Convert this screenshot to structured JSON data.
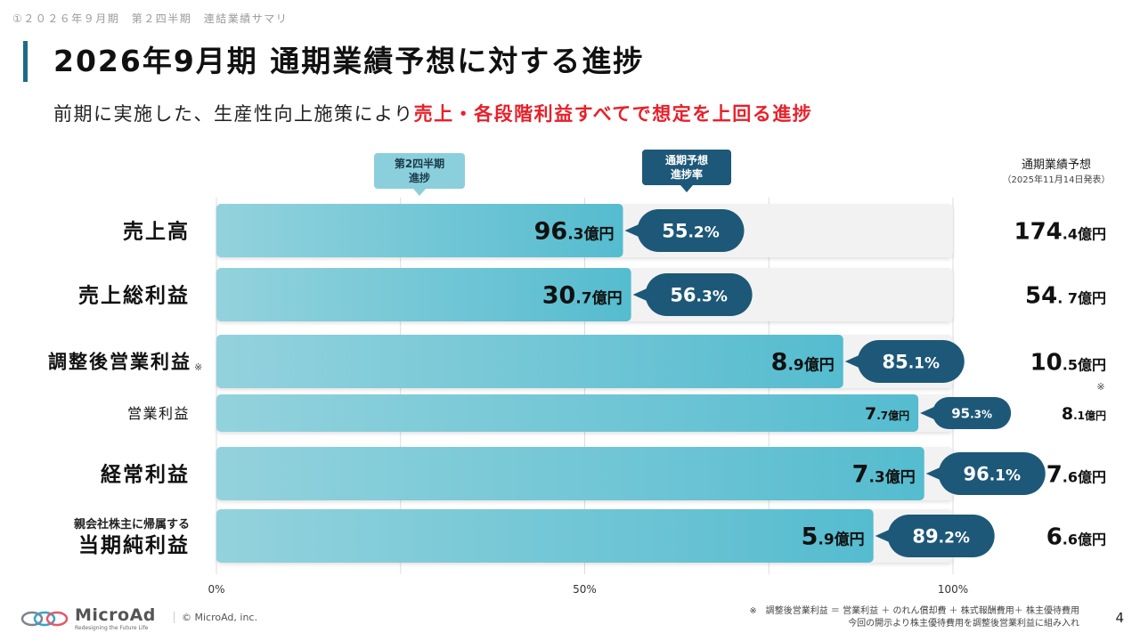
{
  "breadcrumb": "①２０２６年９月期　第２四半期　連結業績サマリ",
  "title": "2026年9月期 通期業績予想に対する進捗",
  "subtitle": {
    "normal": "前期に実施した、生産性向上施策により",
    "highlight": "売上・各段階利益すべてで想定を上回る進捗"
  },
  "callouts": {
    "q2_line1": "第2四半期",
    "q2_line2": "進捗",
    "rate_line1": "通期予想",
    "rate_line2": "進捗率"
  },
  "forecast_header": {
    "line1": "通期業績予想",
    "line2": "（2025年11月14日発表）"
  },
  "footnote": {
    "line1": "※　調整後営業利益 ＝ 営業利益 ＋ のれん償却費 ＋ 株式報酬費用＋ 株主優待費用",
    "line2": "今回の開示より株主優待費用を調整後営業利益に組み入れ"
  },
  "company": {
    "name": "MicroAd",
    "tagline": "Redesigning the Future Life",
    "copyright": "© MicroAd, inc."
  },
  "page_number": "4",
  "colors": {
    "accent": "#1f6a86",
    "bar_start": "#8fd0dc",
    "bar_end": "#5bbfd0",
    "bubble": "#1d5878",
    "highlight": "#e8202a",
    "track": "#f2f2f2"
  },
  "chart_data": {
    "type": "bar",
    "orientation": "horizontal",
    "xlim": [
      0,
      100
    ],
    "x_ticks": [
      "0%",
      "50%",
      "100%"
    ],
    "categories": [
      "売上高",
      "売上総利益",
      "調整後営業利益",
      "営業利益",
      "経常利益",
      "当期純利益"
    ],
    "category_notes": [
      "",
      "",
      "※",
      "",
      "",
      ""
    ],
    "category_prefix": [
      "",
      "",
      "",
      "",
      "",
      "親会社株主に帰属する"
    ],
    "progress_rate": [
      55.2,
      56.3,
      85.1,
      95.3,
      96.1,
      89.2
    ],
    "progress_rate_labels": [
      "55.2%",
      "56.3%",
      "85.1%",
      "95.3%",
      "96.1%",
      "89.2%"
    ],
    "q2_values": [
      96.3,
      30.7,
      8.9,
      7.7,
      7.3,
      5.9
    ],
    "q2_labels": [
      {
        "int": "96",
        "dec": ".3億円"
      },
      {
        "int": "30",
        "dec": ".7億円"
      },
      {
        "int": "8",
        "dec": ".9億円"
      },
      {
        "int": "7",
        "dec": ".7億円"
      },
      {
        "int": "7",
        "dec": ".3億円"
      },
      {
        "int": "5",
        "dec": ".9億円"
      }
    ],
    "forecast_values": [
      174.4,
      54.7,
      10.5,
      8.1,
      7.6,
      6.6
    ],
    "forecast_labels": [
      {
        "int": "174",
        "dec": ".4億円"
      },
      {
        "int": "54",
        "dec": ". 7億円"
      },
      {
        "int": "10",
        "dec": ".5億円"
      },
      {
        "int": "8",
        "dec": ".1億円"
      },
      {
        "int": "7",
        "dec": ".6億円"
      },
      {
        "int": "6",
        "dec": ".6億円"
      }
    ],
    "forecast_notes": [
      "",
      "",
      "※",
      "",
      "",
      ""
    ],
    "units": "億円"
  }
}
